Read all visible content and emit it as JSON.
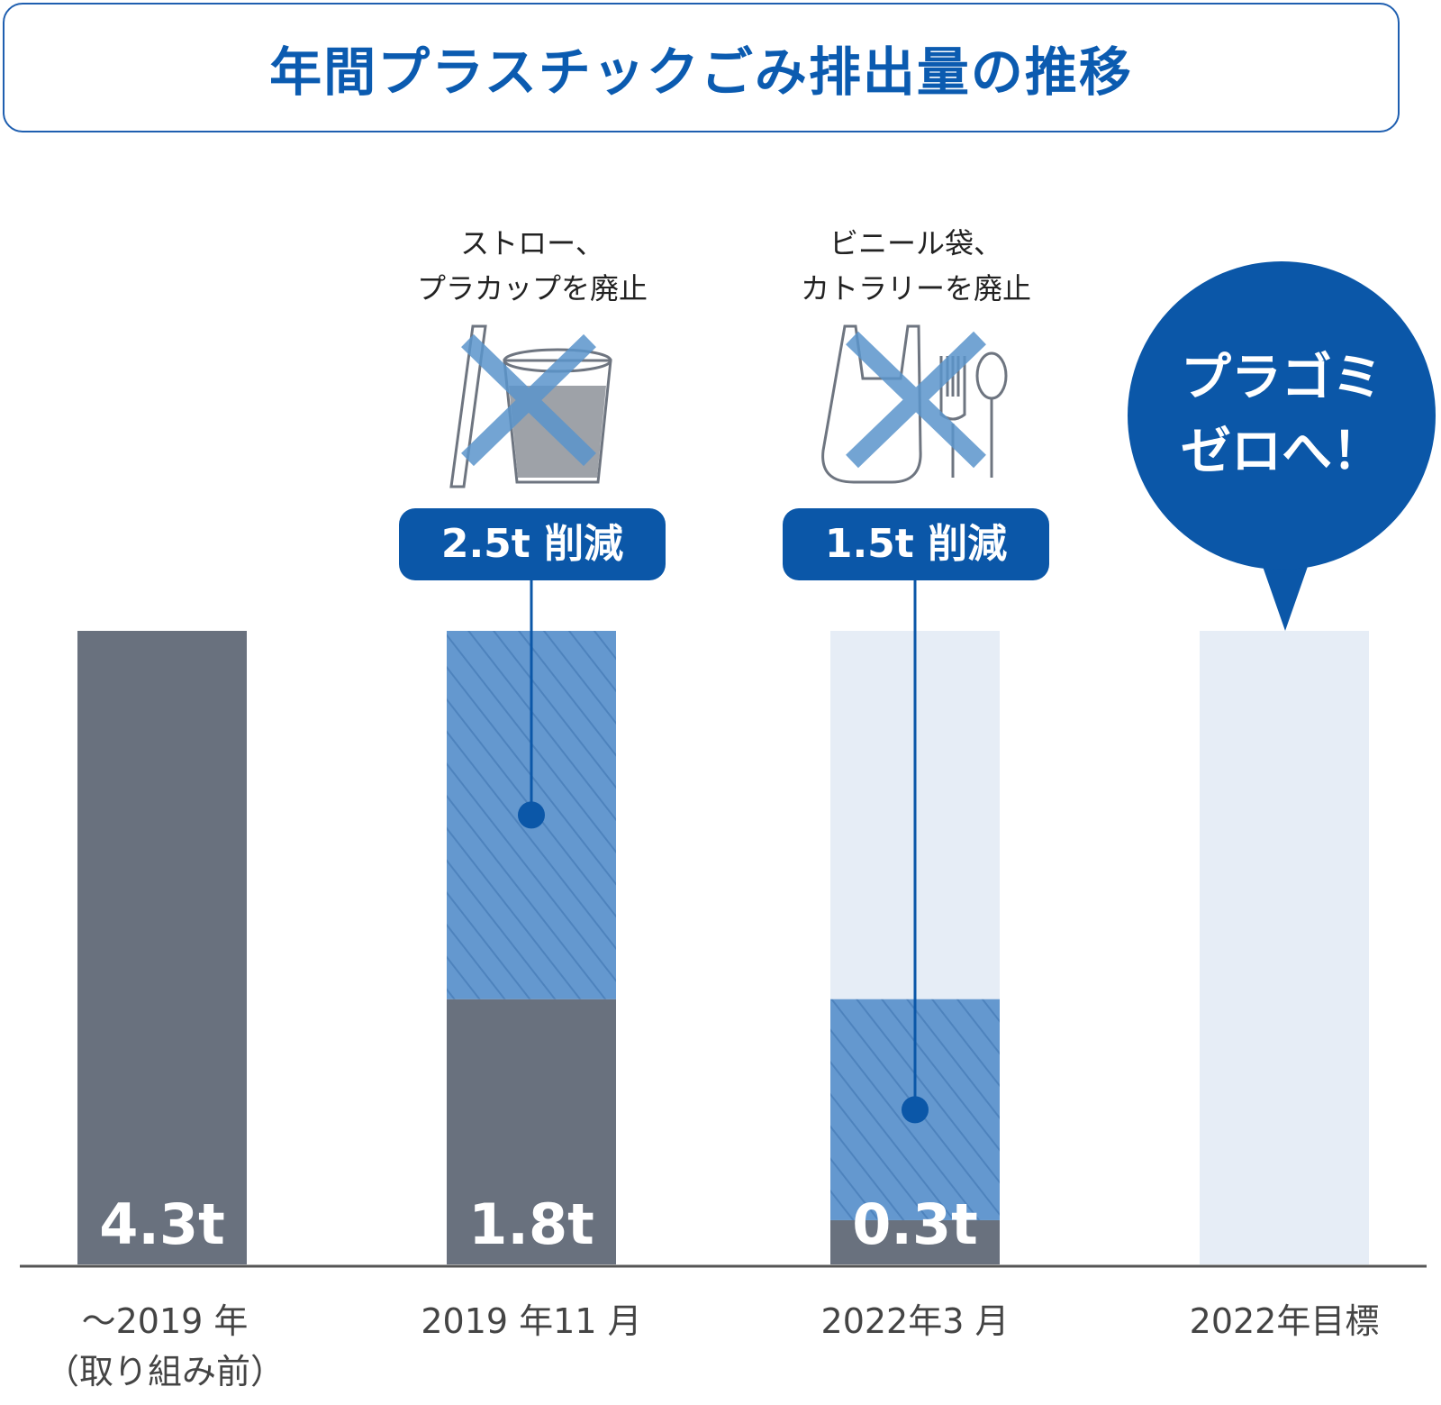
{
  "title": "年間プラスチックごみ排出量の推移",
  "chart_data": {
    "type": "bar",
    "unit": "t",
    "ylim": [
      0,
      4.3
    ],
    "categories": [
      {
        "line1": "～2019 年",
        "line2": "（取り組み前）"
      },
      {
        "line1": "2019 年11 月",
        "line2": ""
      },
      {
        "line1": "2022年3 月",
        "line2": ""
      },
      {
        "line1": "2022年目標",
        "line2": ""
      }
    ],
    "emissions": [
      4.3,
      1.8,
      0.3,
      null
    ],
    "emission_labels": [
      "4.3t",
      "1.8t",
      "0.3t",
      ""
    ],
    "reductions": [
      null,
      2.5,
      1.5,
      null
    ],
    "reduction_labels": [
      "",
      "2.5t 削減",
      "1.5t 削減",
      ""
    ],
    "notes": [
      "",
      "ストロー、\nプラカップを廃止",
      "ビニール袋、\nカトラリーを廃止",
      ""
    ],
    "goal_bubble": {
      "line1": "プラゴミ",
      "line2": "ゼロへ！"
    },
    "colors": {
      "emission": "#69717e",
      "reduction": "#6498cf",
      "background": "#e6edf6",
      "accent": "#0b57a8",
      "cross": "#5b95cc"
    }
  }
}
